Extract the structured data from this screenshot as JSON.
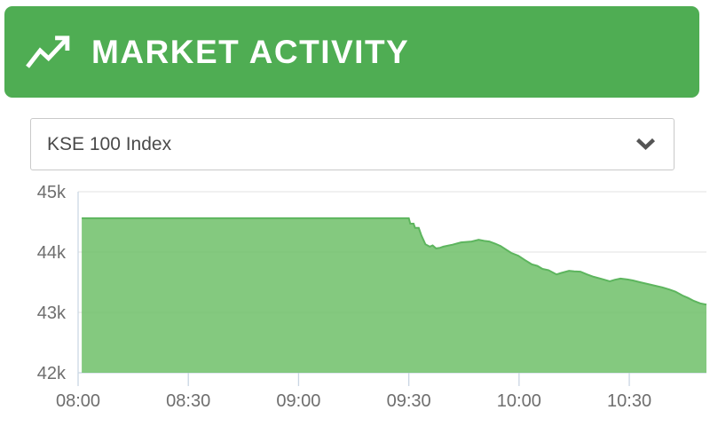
{
  "header": {
    "title": "MARKET ACTIVITY",
    "icon": "trending-up-icon",
    "background": "#4fad53"
  },
  "index_selector": {
    "value": "KSE 100 Index"
  },
  "chart_data": {
    "type": "area",
    "series": [
      {
        "name": "KSE 100 Index",
        "points": [
          [
            1,
            44560
          ],
          [
            90,
            44560
          ],
          [
            90.4,
            44470
          ],
          [
            91.3,
            44470
          ],
          [
            91.7,
            44400
          ],
          [
            92.7,
            44400
          ],
          [
            93.4,
            44280
          ],
          [
            94.5,
            44130
          ],
          [
            95.7,
            44090
          ],
          [
            96.5,
            44110
          ],
          [
            97.4,
            44060
          ],
          [
            98.5,
            44070
          ],
          [
            99.4,
            44090
          ],
          [
            101.8,
            44120
          ],
          [
            104.2,
            44160
          ],
          [
            107.1,
            44175
          ],
          [
            109,
            44205
          ],
          [
            110.5,
            44185
          ],
          [
            111.9,
            44175
          ],
          [
            113.5,
            44140
          ],
          [
            115,
            44100
          ],
          [
            116.5,
            44040
          ],
          [
            117.9,
            43985
          ],
          [
            119.8,
            43940
          ],
          [
            121.5,
            43870
          ],
          [
            123.5,
            43795
          ],
          [
            125,
            43770
          ],
          [
            126.4,
            43720
          ],
          [
            128,
            43700
          ],
          [
            130.2,
            43630
          ],
          [
            131.5,
            43655
          ],
          [
            133.6,
            43690
          ],
          [
            135,
            43680
          ],
          [
            136.7,
            43675
          ],
          [
            138.5,
            43630
          ],
          [
            140.3,
            43590
          ],
          [
            142.5,
            43555
          ],
          [
            144.7,
            43515
          ],
          [
            146,
            43540
          ],
          [
            147.6,
            43560
          ],
          [
            149.5,
            43545
          ],
          [
            151,
            43530
          ],
          [
            152.9,
            43500
          ],
          [
            155,
            43470
          ],
          [
            157.2,
            43440
          ],
          [
            159,
            43415
          ],
          [
            160.9,
            43380
          ],
          [
            162.5,
            43345
          ],
          [
            164.5,
            43280
          ],
          [
            166,
            43240
          ],
          [
            167.6,
            43190
          ],
          [
            169.3,
            43150
          ],
          [
            171,
            43130
          ]
        ]
      }
    ],
    "x_ticks": [
      "08:00",
      "08:30",
      "09:00",
      "09:30",
      "10:00",
      "10:30"
    ],
    "x_tick_minutes": [
      0,
      30,
      60,
      90,
      120,
      150
    ],
    "xlim_minutes": [
      0,
      171
    ],
    "y_ticks": [
      "45k",
      "44k",
      "43k",
      "42k"
    ],
    "y_tick_values": [
      45000,
      44000,
      43000,
      42000
    ],
    "ylim": [
      42000,
      45000
    ],
    "grid": true,
    "legend": false,
    "colors": {
      "fill": "#6fc068",
      "line": "#5db55e",
      "grid": "#e7e7e7",
      "axis": "#c9d5e3",
      "label": "#6e6e6e"
    }
  }
}
